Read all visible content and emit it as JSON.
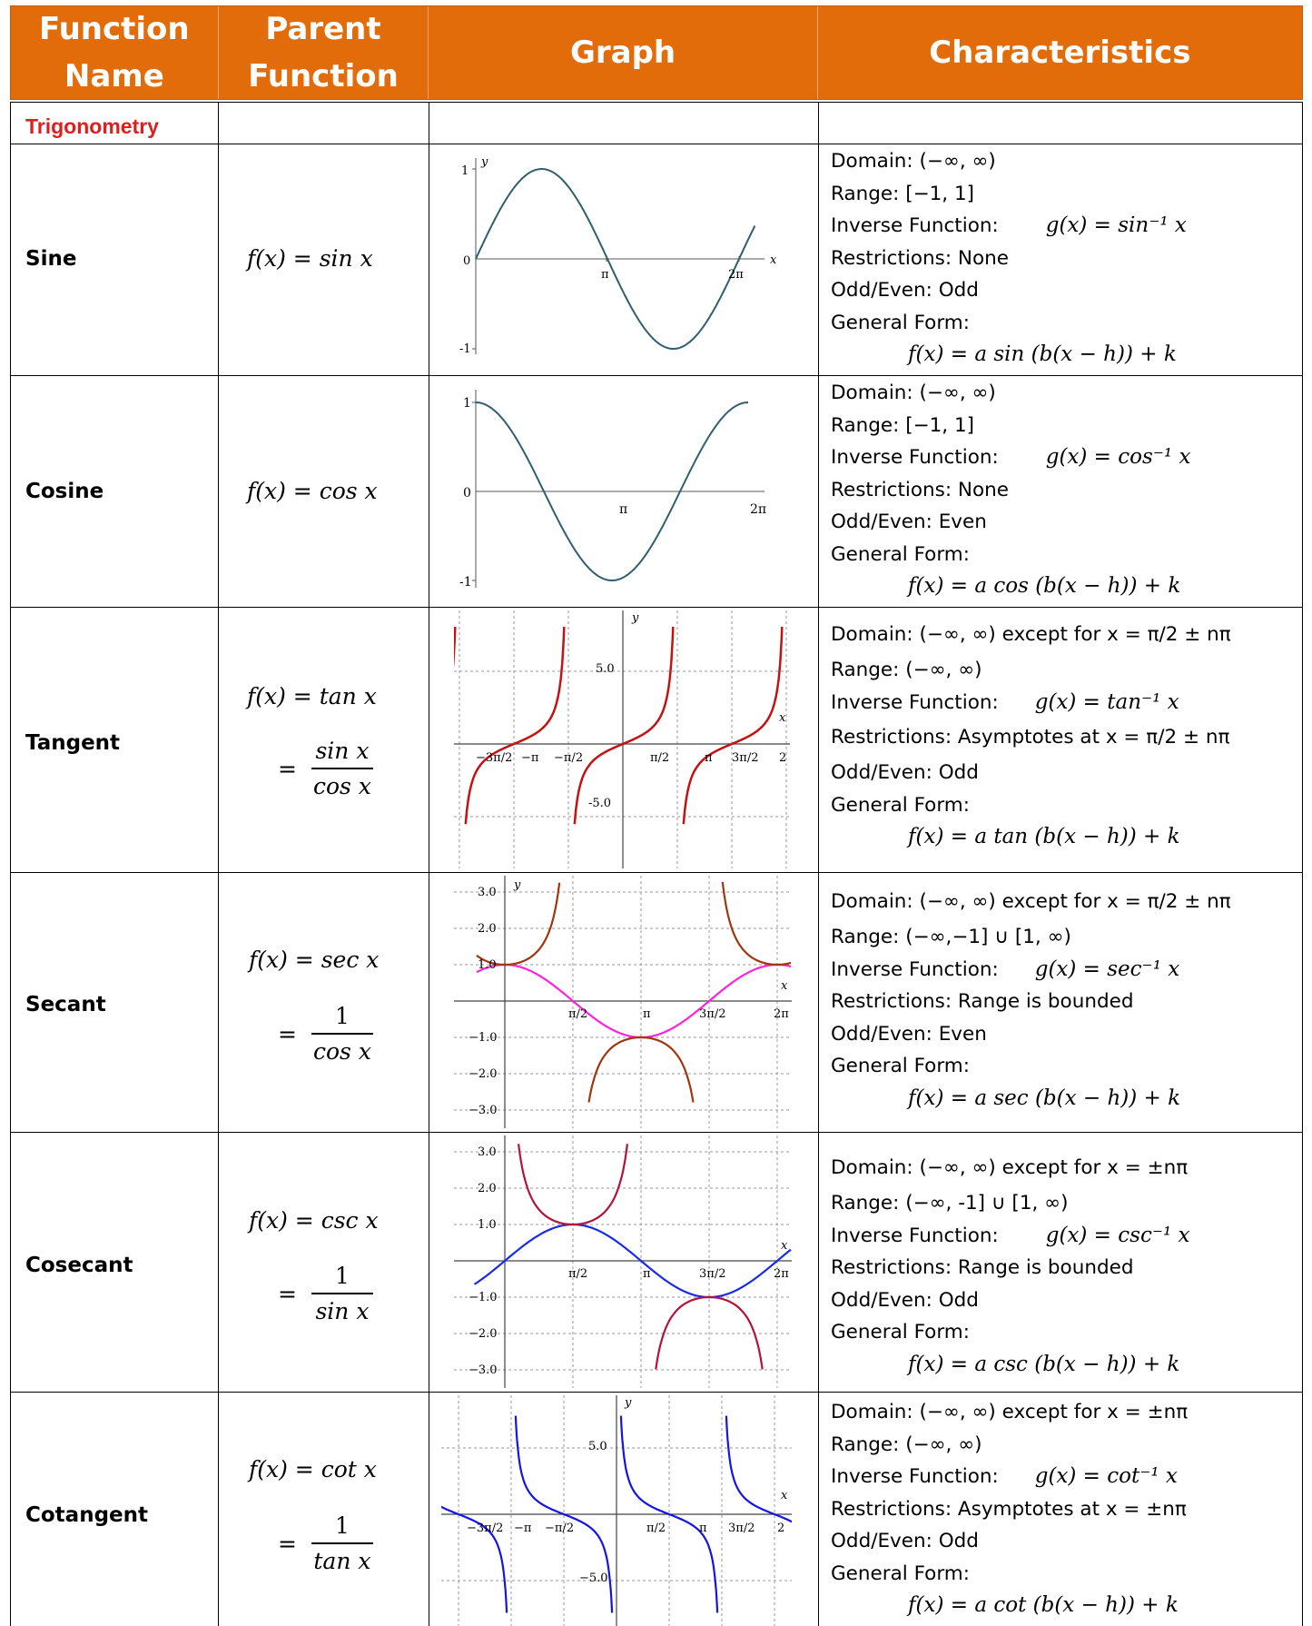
{
  "header": {
    "col1": "Function Name",
    "col2": "Parent Function",
    "col3": "Graph",
    "col4": "Characteristics",
    "background": "#e36c0a"
  },
  "category": "Trigonometry",
  "rows": [
    {
      "name": "Sine",
      "parent": "f(x) = sin x",
      "chars": {
        "domain": "Domain: (−∞, ∞)",
        "range": "Range: [−1, 1]",
        "inverse_label": "Inverse Function:",
        "inverse": "g(x) = sin⁻¹ x",
        "restrictions": "Restrictions: None",
        "odd_even": "Odd/Even: Odd",
        "general_label": "General Form:",
        "general": "f(x) = a sin (b(x − h)) + k"
      },
      "graph": {
        "color": "#2f5f6f",
        "labels": [
          "1",
          "y",
          "0",
          "x",
          "π",
          "2π",
          "-1"
        ]
      }
    },
    {
      "name": "Cosine",
      "parent": "f(x) = cos x",
      "chars": {
        "domain": "Domain: (−∞, ∞)",
        "range": "Range: [−1, 1]",
        "inverse_label": "Inverse Function:",
        "inverse": "g(x) = cos⁻¹ x",
        "restrictions": "Restrictions: None",
        "odd_even": "Odd/Even: Even",
        "general_label": "General Form:",
        "general": "f(x) = a cos (b(x − h)) + k"
      },
      "graph": {
        "color": "#2f5f6f",
        "labels": [
          "1",
          "0",
          "π",
          "2π",
          "-1"
        ]
      }
    },
    {
      "name": "Tangent",
      "parent": "f(x) = tan x",
      "ratio_num": "sin x",
      "ratio_den": "cos x",
      "chars": {
        "domain": "Domain: (−∞, ∞) except for x = π/2 ± nπ",
        "range": "Range: (−∞, ∞)",
        "inverse_label": "Inverse Function:",
        "inverse": "g(x) = tan⁻¹ x",
        "restrictions": "Restrictions: Asymptotes at x = π/2 ± nπ",
        "odd_even": "Odd/Even: Odd",
        "general_label": "General Form:",
        "general": "f(x) = a tan (b(x − h)) + k"
      },
      "graph": {
        "color": "#c41212",
        "labels": [
          "5.0",
          "-5.0",
          "y",
          "x",
          "−3π/2",
          "−π",
          "−π/2",
          "π/2",
          "π",
          "3π/2",
          "2"
        ]
      }
    },
    {
      "name": "Secant",
      "parent": "f(x) = sec x",
      "ratio_num": "1",
      "ratio_den": "cos x",
      "chars": {
        "domain": "Domain: (−∞, ∞) except for x = π/2 ± nπ",
        "range": "Range: (−∞,−1] ∪ [1, ∞)",
        "inverse_label": "Inverse Function:",
        "inverse": "g(x) = sec⁻¹ x",
        "restrictions": "Restrictions: Range is bounded",
        "odd_even": "Odd/Even: Even",
        "general_label": "General Form:",
        "general": "f(x) = a sec (b(x − h)) + k"
      },
      "graph": {
        "color": "#a0360e",
        "color2": "#ff22dd",
        "labels": [
          "3.0",
          "2.0",
          "1.0",
          "−1.0",
          "−2.0",
          "−3.0",
          "y",
          "x",
          "π/2",
          "π",
          "3π/2",
          "2π"
        ]
      }
    },
    {
      "name": "Cosecant",
      "parent": "f(x) = csc x",
      "ratio_num": "1",
      "ratio_den": "sin x",
      "chars": {
        "domain": "Domain: (−∞, ∞) except for  x = ±nπ",
        "range": "Range: (−∞, -1] ∪ [1, ∞)",
        "inverse_label": "Inverse Function:",
        "inverse": "g(x) = csc⁻¹ x",
        "restrictions": "Restrictions: Range is bounded",
        "odd_even": "Odd/Even: Odd",
        "general_label": "General Form:",
        "general": "f(x) = a csc (b(x − h)) + k"
      },
      "graph": {
        "color": "#b3123a",
        "color2": "#1a2be8",
        "labels": [
          "3.0",
          "2.0",
          "1.0",
          "−1.0",
          "−2.0",
          "−3.0",
          "x",
          "π/2",
          "π",
          "3π/2",
          "2π"
        ]
      }
    },
    {
      "name": "Cotangent",
      "parent": "f(x) = cot x",
      "ratio_num": "1",
      "ratio_den": "tan x",
      "chars": {
        "domain": "Domain: (−∞, ∞) except for x = ±nπ",
        "range": "Range: (−∞, ∞)",
        "inverse_label": "Inverse Function:",
        "inverse": "g(x) = cot⁻¹ x",
        "restrictions": "Restrictions: Asymptotes at x = ±nπ",
        "odd_even": "Odd/Even: Odd",
        "general_label": "General Form:",
        "general": "f(x) = a cot (b(x − h)) + k"
      },
      "graph": {
        "color": "#1414e6",
        "labels": [
          "5.0",
          "−5.0",
          "y",
          "x",
          "−3π/2",
          "−π",
          "−π/2",
          "π/2",
          "π",
          "3π/2",
          "2"
        ]
      }
    }
  ]
}
